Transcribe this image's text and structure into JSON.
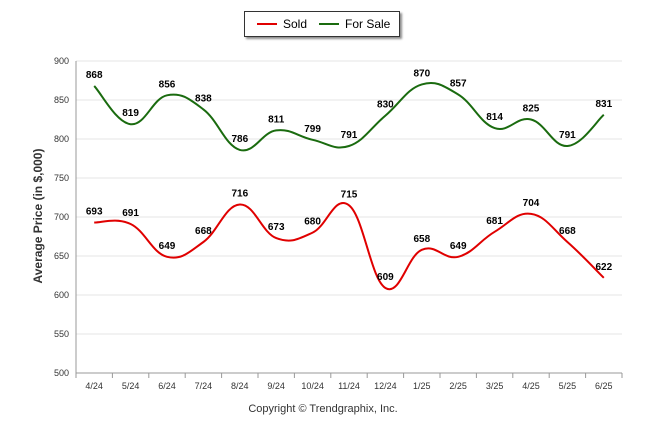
{
  "chart_data": {
    "type": "line",
    "ylabel": "Average Price (in $,000)",
    "ylim": [
      500,
      900
    ],
    "yticks": [
      500,
      550,
      600,
      650,
      700,
      750,
      800,
      850,
      900
    ],
    "grid": true,
    "legend_placement": "top-center",
    "categories": [
      "4/24",
      "5/24",
      "6/24",
      "7/24",
      "8/24",
      "9/24",
      "10/24",
      "11/24",
      "12/24",
      "1/25",
      "2/25",
      "3/25",
      "4/25",
      "5/25",
      "6/25"
    ],
    "series": [
      {
        "name": "Sold",
        "color": "#e00000",
        "values": [
          693,
          691,
          649,
          668,
          716,
          673,
          680,
          715,
          609,
          658,
          649,
          681,
          704,
          668,
          622
        ]
      },
      {
        "name": "For Sale",
        "color": "#1a6b0f",
        "values": [
          868,
          819,
          856,
          838,
          786,
          811,
          799,
          791,
          830,
          870,
          857,
          814,
          825,
          791,
          831
        ]
      }
    ]
  },
  "copyright": "Copyright © Trendgraphix, Inc."
}
